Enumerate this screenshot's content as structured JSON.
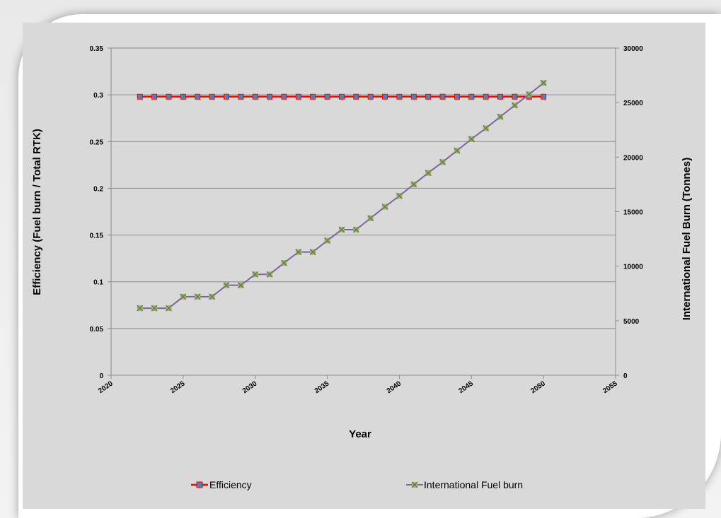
{
  "chart_data": {
    "type": "line",
    "title": "",
    "xlabel": "Year",
    "ylabel": "Efficiency (Fuel burn / Total RTK)",
    "y2label": "International Fuel Burn (Tonnes)",
    "xlim": [
      2020,
      2055
    ],
    "ylim": [
      0,
      0.35
    ],
    "y2lim": [
      0,
      30000
    ],
    "xticks": [
      "2020",
      "2025",
      "2030",
      "2035",
      "2040",
      "2045",
      "2050",
      "2055"
    ],
    "yticks": [
      "0",
      "0.05",
      "0.1",
      "0.15",
      "0.2",
      "0.25",
      "0.3",
      "0.35"
    ],
    "y2ticks": [
      "0",
      "5000",
      "10000",
      "15000",
      "20000",
      "25000",
      "30000"
    ],
    "grid": true,
    "legend_position": "bottom",
    "x": [
      2022,
      2023,
      2024,
      2025,
      2026,
      2027,
      2028,
      2029,
      2030,
      2031,
      2032,
      2033,
      2034,
      2035,
      2036,
      2037,
      2038,
      2039,
      2040,
      2041,
      2042,
      2043,
      2044,
      2045,
      2046,
      2047,
      2048,
      2049,
      2050
    ],
    "series": [
      {
        "name": "Efficiency",
        "axis": "left",
        "color": "#ff0000",
        "marker": "square",
        "marker_color": "#4f81bd",
        "values": [
          0.298,
          0.298,
          0.298,
          0.298,
          0.298,
          0.298,
          0.298,
          0.298,
          0.298,
          0.298,
          0.298,
          0.298,
          0.298,
          0.298,
          0.298,
          0.298,
          0.298,
          0.298,
          0.298,
          0.298,
          0.298,
          0.298,
          0.298,
          0.298,
          0.298,
          0.298,
          0.298,
          0.298,
          0.298
        ]
      },
      {
        "name": "International Fuel burn",
        "axis": "right",
        "color": "#8064a2",
        "marker": "x",
        "marker_color": "#9bbb59",
        "values": [
          6150,
          6150,
          6150,
          7200,
          7200,
          7200,
          8250,
          8250,
          9250,
          9250,
          10300,
          11300,
          11300,
          12350,
          13350,
          13350,
          14400,
          15450,
          16450,
          17500,
          18550,
          19550,
          20600,
          21650,
          22650,
          23700,
          24750,
          25750,
          26800
        ]
      }
    ]
  }
}
